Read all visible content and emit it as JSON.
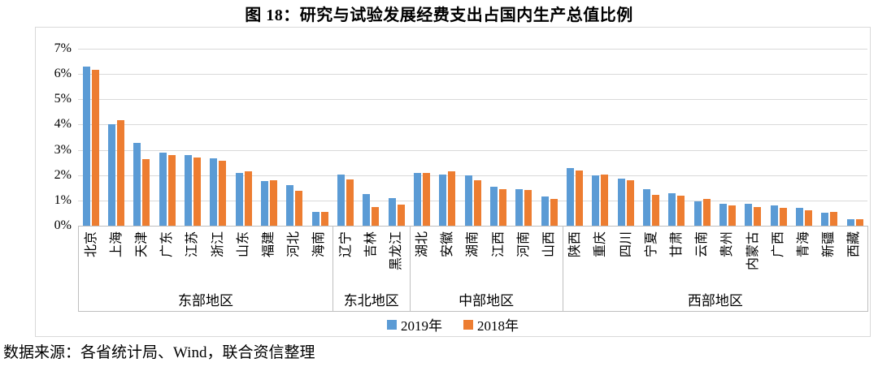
{
  "title": "图 18：研究与试验发展经费支出占国内生产总值比例",
  "source_note": "数据来源：各省统计局、Wind，联合资信整理",
  "legend": [
    {
      "label": "2019年",
      "color": "#5b9bd5"
    },
    {
      "label": "2018年",
      "color": "#ed7d31"
    }
  ],
  "chart_data": {
    "type": "bar",
    "title": "图 18：研究与试验发展经费支出占国内生产总值比例",
    "xlabel": "",
    "ylabel": "",
    "ylim": [
      0,
      7
    ],
    "ytick_labels": [
      "7%",
      "6%",
      "5%",
      "4%",
      "3%",
      "2%",
      "1%",
      "0%"
    ],
    "grid": true,
    "legend_position": "bottom",
    "categories": [
      "北京",
      "上海",
      "天津",
      "广东",
      "江苏",
      "浙江",
      "山东",
      "福建",
      "河北",
      "海南",
      "辽宁",
      "吉林",
      "黑龙江",
      "湖北",
      "安徽",
      "湖南",
      "江西",
      "河南",
      "山西",
      "陕西",
      "重庆",
      "四川",
      "宁夏",
      "甘肃",
      "云南",
      "贵州",
      "内蒙古",
      "广西",
      "青海",
      "新疆",
      "西藏"
    ],
    "groups": [
      {
        "label": "东部地区",
        "count": 10
      },
      {
        "label": "东北地区",
        "count": 3
      },
      {
        "label": "中部地区",
        "count": 6
      },
      {
        "label": "西部地区",
        "count": 12
      }
    ],
    "series": [
      {
        "name": "2019年",
        "color": "#5b9bd5",
        "values": [
          6.31,
          4.0,
          3.28,
          2.88,
          2.79,
          2.68,
          2.1,
          1.78,
          1.61,
          0.56,
          2.04,
          1.26,
          1.08,
          2.09,
          2.03,
          1.98,
          1.55,
          1.46,
          1.17,
          2.27,
          1.99,
          1.87,
          1.45,
          1.28,
          0.95,
          0.86,
          0.86,
          0.79,
          0.71,
          0.5,
          0.27
        ]
      },
      {
        "name": "2018年",
        "color": "#ed7d31",
        "values": [
          6.17,
          4.16,
          2.62,
          2.78,
          2.7,
          2.57,
          2.15,
          1.8,
          1.39,
          0.56,
          1.82,
          0.75,
          0.84,
          2.09,
          2.16,
          1.81,
          1.44,
          1.4,
          1.05,
          2.18,
          2.01,
          1.81,
          1.23,
          1.2,
          1.05,
          0.82,
          0.75,
          0.71,
          0.62,
          0.55,
          0.25
        ]
      }
    ],
    "colors": {
      "gridline": "#d9d9d9",
      "axis_line": "#bfbfbf",
      "frame_border": "#d9d9d9"
    }
  }
}
